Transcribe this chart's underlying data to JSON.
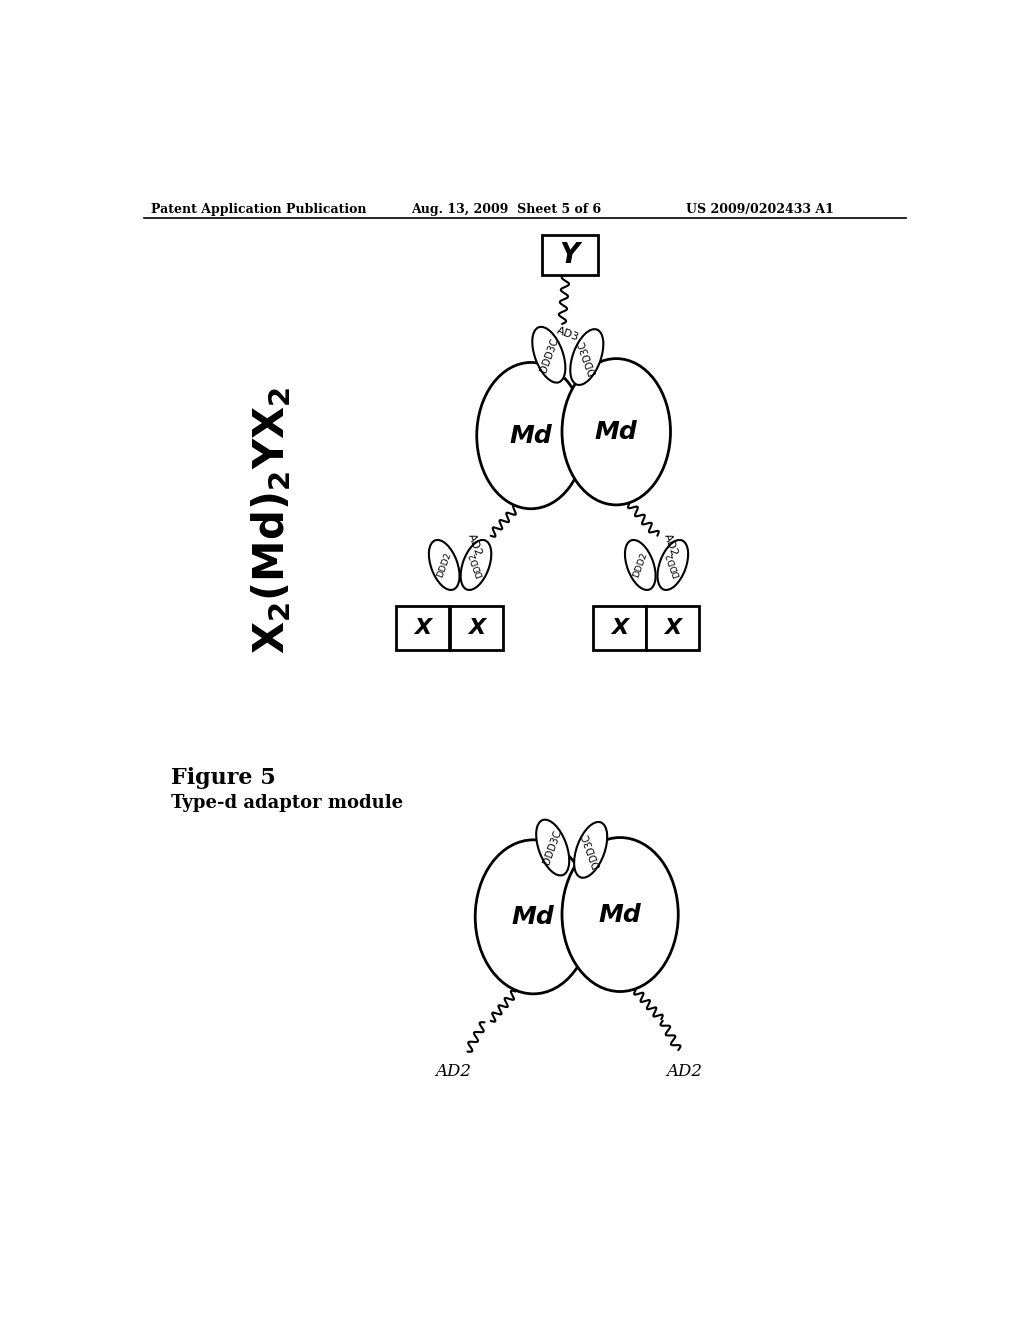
{
  "bg_color": "#ffffff",
  "header_left": "Patent Application Publication",
  "header_mid": "Aug. 13, 2009  Sheet 5 of 6",
  "header_right": "US 2009/0202433 A1",
  "figure_label": "Figure 5",
  "type_d_label": "Type-d adaptor module"
}
